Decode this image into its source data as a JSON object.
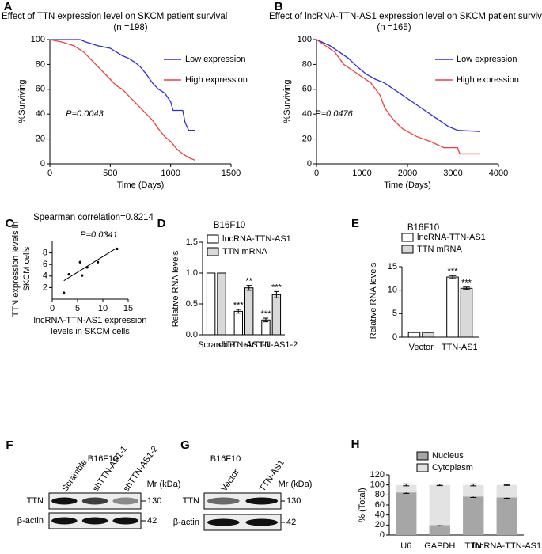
{
  "chart_data": [
    {
      "panel": "A",
      "type": "line",
      "title": "Effect of TTN expression level on SKCM patient survival",
      "subtitle": "(n =198)",
      "xlabel": "Time (Days)",
      "ylabel": "%Surviving",
      "annotation": "P=0.0043",
      "xlim": [
        0,
        1500
      ],
      "xticks": [
        0,
        500,
        1000,
        1500
      ],
      "ylim": [
        0,
        100
      ],
      "yticks": [
        0,
        20,
        40,
        60,
        80,
        100
      ],
      "series": [
        {
          "name": "Low expression",
          "color": "#2b2bdc",
          "x": [
            0,
            250,
            300,
            400,
            500,
            550,
            600,
            650,
            700,
            750,
            800,
            850,
            900,
            950,
            1000,
            1020,
            1100,
            1120,
            1150,
            1200
          ],
          "values": [
            100,
            100,
            98,
            95,
            93,
            90,
            87,
            85,
            82,
            78,
            72,
            65,
            60,
            57,
            50,
            43,
            43,
            33,
            27,
            27
          ]
        },
        {
          "name": "High expression",
          "color": "#f03c3c",
          "x": [
            0,
            100,
            200,
            280,
            330,
            400,
            450,
            500,
            550,
            600,
            650,
            700,
            750,
            800,
            850,
            900,
            950,
            1000,
            1050,
            1100,
            1150,
            1200
          ],
          "values": [
            100,
            98,
            95,
            90,
            85,
            78,
            73,
            68,
            63,
            60,
            55,
            50,
            45,
            40,
            35,
            28,
            22,
            18,
            12,
            8,
            5,
            3
          ]
        }
      ]
    },
    {
      "panel": "B",
      "type": "line",
      "title": "Effect of lncRNA-TTN-AS1 expression level on SKCM patient survival",
      "subtitle": "(n =165)",
      "xlabel": "Time (Days)",
      "ylabel": "%Surviving",
      "annotation": "P=0.0476",
      "xlim": [
        0,
        4000
      ],
      "xticks": [
        0,
        1000,
        2000,
        3000,
        4000
      ],
      "ylim": [
        0,
        100
      ],
      "yticks": [
        0,
        20,
        40,
        60,
        80,
        100
      ],
      "series": [
        {
          "name": "Low expression",
          "color": "#2b2bdc",
          "x": [
            0,
            300,
            500,
            700,
            900,
            1100,
            1300,
            1500,
            1700,
            1900,
            2100,
            2300,
            2500,
            2700,
            2900,
            3100,
            3600
          ],
          "values": [
            100,
            95,
            90,
            85,
            78,
            72,
            68,
            65,
            60,
            55,
            50,
            45,
            40,
            35,
            30,
            27,
            26
          ]
        },
        {
          "name": "High expression",
          "color": "#f03c3c",
          "x": [
            0,
            200,
            400,
            600,
            800,
            1000,
            1200,
            1400,
            1500,
            1700,
            1900,
            2200,
            2500,
            2800,
            3100,
            3150,
            3600
          ],
          "values": [
            100,
            95,
            90,
            80,
            75,
            70,
            65,
            55,
            45,
            35,
            28,
            22,
            18,
            13,
            13,
            8,
            8
          ]
        }
      ]
    },
    {
      "panel": "C",
      "type": "scatter",
      "title": "Spearman correlation=0.8214",
      "annotation": "P=0.0341",
      "xlabel": [
        "lncRNA-TTN-AS1 expression",
        "levels in SKCM cells"
      ],
      "ylabel": [
        "TTN expression levels in",
        "SKCM cells"
      ],
      "xlim": [
        0,
        15
      ],
      "xticks": [
        0,
        5,
        10,
        15
      ],
      "ylim": [
        0,
        10
      ],
      "yticks": [
        2,
        4,
        6,
        8
      ],
      "color": "#000000",
      "x": [
        2.3,
        3.3,
        5.5,
        5.9,
        6.9,
        9,
        12.8
      ],
      "values": [
        1.1,
        4.3,
        6.4,
        4.1,
        5.5,
        6.4,
        8.7
      ],
      "trend_line": {
        "x": [
          2.3,
          12.8
        ],
        "values": [
          3.2,
          8.9
        ]
      }
    },
    {
      "panel": "D",
      "type": "bar",
      "title": "B16F10",
      "ylabel": "Relative RNA levels",
      "categories": [
        "Scramble",
        "shTTN-AS1-1",
        "shTTN-AS1-2"
      ],
      "ylim": [
        0,
        1.5
      ],
      "yticks": [
        {
          "value": 0,
          "label": "0.0"
        },
        0.5,
        {
          "value": 1,
          "label": "1.0"
        },
        1.5
      ],
      "series": [
        {
          "name": "lncRNA-TTN-AS1",
          "color": "#ffffff",
          "values": [
            1,
            0.38,
            0.24
          ],
          "errors": [
            0,
            0.03,
            0.03
          ],
          "significance": [
            null,
            "***",
            "***"
          ]
        },
        {
          "name": "TTN mRNA",
          "color": "#d9d9d9",
          "values": [
            1,
            0.76,
            0.65
          ],
          "errors": [
            0,
            0.04,
            0.05
          ],
          "significance": [
            null,
            "**",
            "***"
          ]
        }
      ]
    },
    {
      "panel": "E",
      "type": "bar",
      "title": "B16F10",
      "ylabel": "Relative RNA levels",
      "categories": [
        "Vector",
        "TTN-AS1"
      ],
      "ylim": [
        0,
        15
      ],
      "yticks": [
        0,
        5,
        10,
        15
      ],
      "series": [
        {
          "name": "lncRNA-TTN-AS1",
          "color": "#ffffff",
          "values": [
            1,
            12.8
          ],
          "errors": [
            0,
            0.3
          ],
          "significance": [
            null,
            "***"
          ]
        },
        {
          "name": "TTN mRNA",
          "color": "#d9d9d9",
          "values": [
            1,
            10.4
          ],
          "errors": [
            0,
            0.25
          ],
          "significance": [
            null,
            "***"
          ]
        }
      ]
    },
    {
      "panel": "H",
      "type": "stacked_bar",
      "ylabel": "% (Total)",
      "categories": [
        "U6",
        "GAPDH",
        "TTN",
        "lncRNA-TTN-AS1"
      ],
      "ylim": [
        0,
        120
      ],
      "yticks": [
        0,
        20,
        40,
        60,
        80,
        100,
        120
      ],
      "series": [
        {
          "name": "Nucleus",
          "color": "#a6a6a6",
          "values": [
            85,
            20,
            77,
            75
          ],
          "errors": [
            2,
            1.5,
            2,
            1.5
          ]
        },
        {
          "name": "Cytoplasm",
          "color": "#e3e3e3",
          "values": [
            15,
            80,
            23,
            25
          ],
          "errors": [
            2,
            1.5,
            2,
            1
          ]
        }
      ]
    }
  ],
  "blots": [
    {
      "panel": "F",
      "title": "B16F10",
      "lanes": [
        "Scramble",
        "shTTN-AS1-1",
        "shTTN-AS1-2"
      ],
      "mr_header": "Mr (kDa)",
      "rows": [
        {
          "label": "TTN",
          "mr": 130
        },
        {
          "label": "β-actin",
          "mr": 42
        }
      ]
    },
    {
      "panel": "G",
      "title": "B16F10",
      "lanes": [
        "Vector",
        "TTN-AS1"
      ],
      "mr_header": "Mr (kDa)",
      "rows": [
        {
          "label": "TTN",
          "mr": 130
        },
        {
          "label": "β-actin",
          "mr": 42
        }
      ]
    }
  ]
}
